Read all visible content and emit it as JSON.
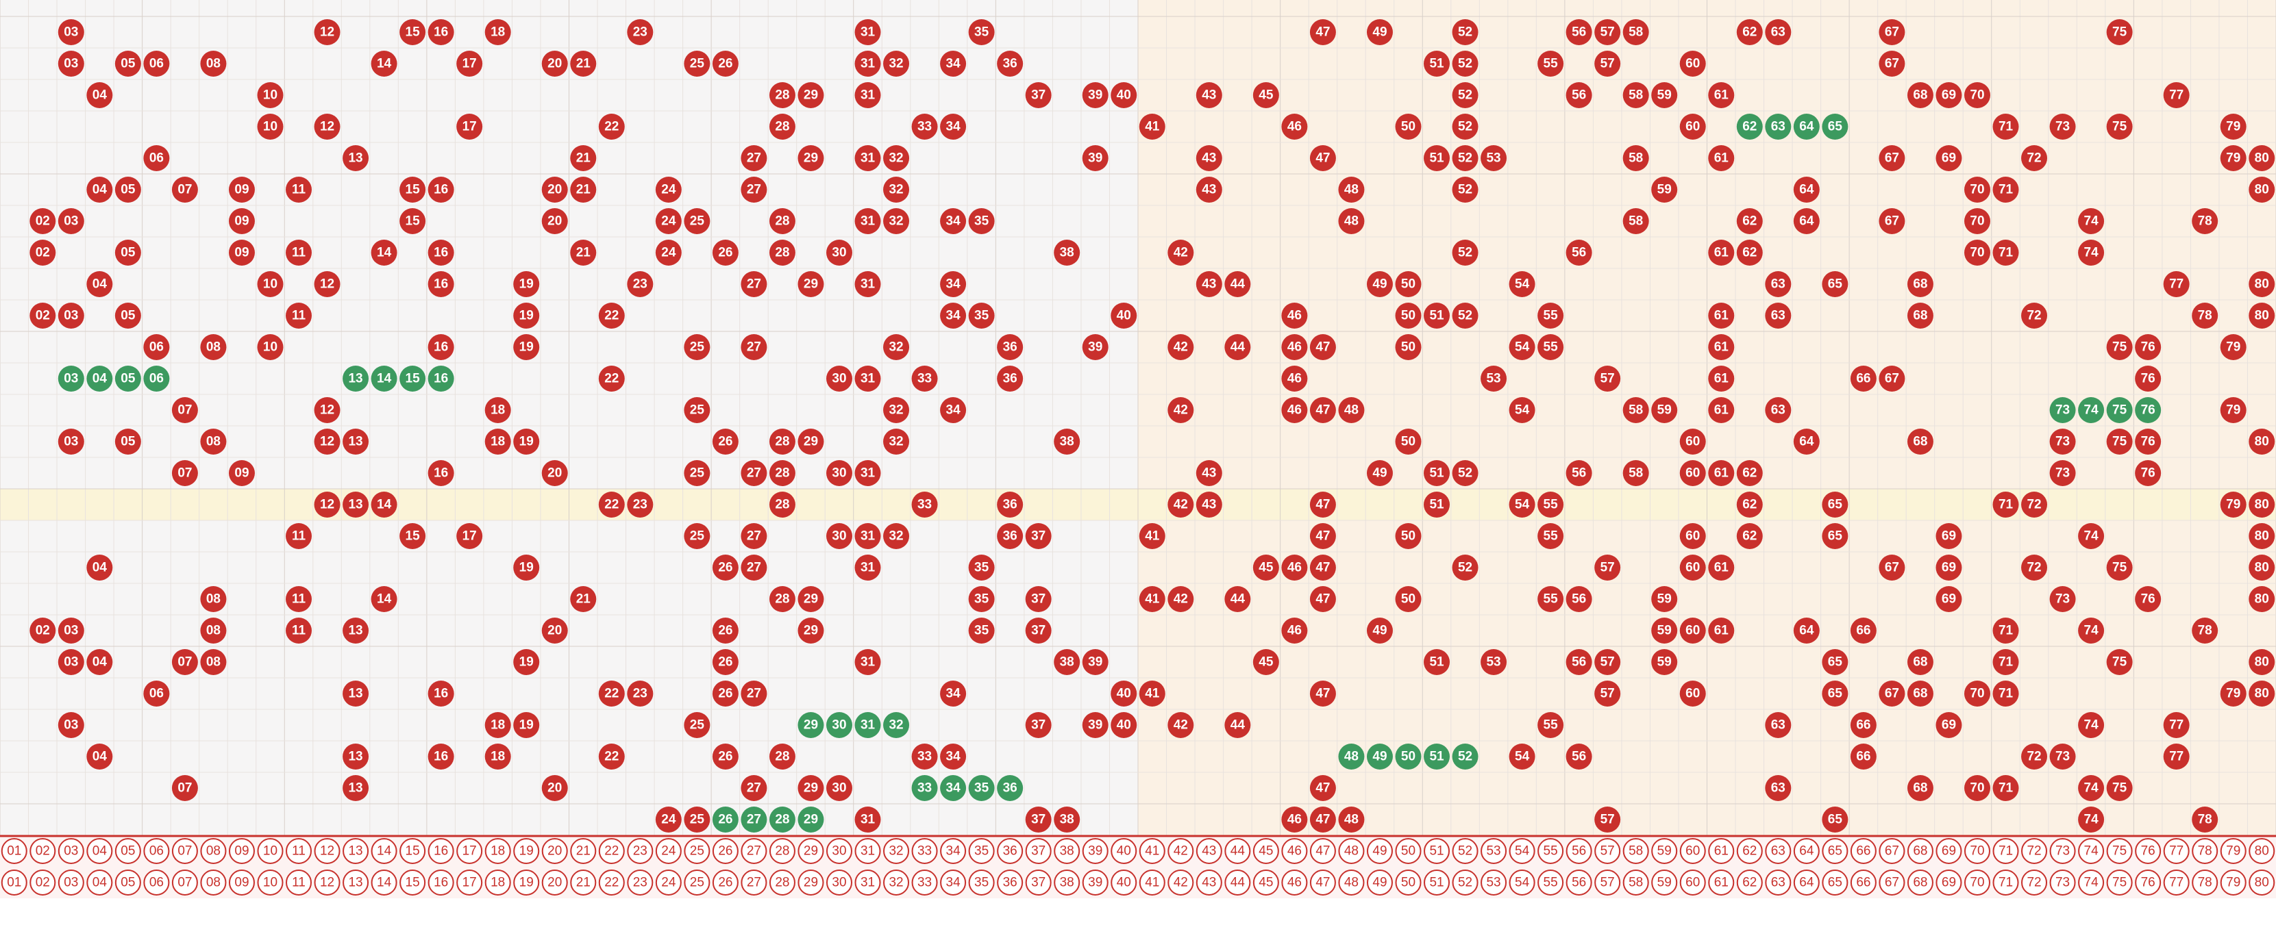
{
  "trend": {
    "columns": [
      "01",
      "02",
      "03",
      "04",
      "05",
      "06",
      "07",
      "08",
      "09",
      "10",
      "11",
      "12",
      "13",
      "14",
      "15",
      "16",
      "17",
      "18",
      "19",
      "20",
      "21",
      "22",
      "23",
      "24",
      "25",
      "26",
      "27",
      "28",
      "29",
      "30",
      "31",
      "32",
      "33",
      "34",
      "35",
      "36",
      "37",
      "38",
      "39",
      "40",
      "41",
      "42",
      "43",
      "44",
      "45",
      "46",
      "47",
      "48",
      "49",
      "50",
      "51",
      "52",
      "53",
      "54",
      "55",
      "56",
      "57",
      "58",
      "59",
      "60",
      "61",
      "62",
      "63",
      "64",
      "65",
      "66",
      "67",
      "68",
      "69",
      "70",
      "71",
      "72",
      "73",
      "74",
      "75",
      "76",
      "77",
      "78",
      "79",
      "80"
    ],
    "rows": [
      {
        "red": [
          "03",
          "12",
          "15",
          "16",
          "18",
          "23",
          "31",
          "35",
          "47",
          "49",
          "52",
          "56",
          "57",
          "58",
          "62",
          "63",
          "67",
          "75"
        ],
        "green": []
      },
      {
        "red": [
          "03",
          "05",
          "06",
          "08",
          "14",
          "17",
          "20",
          "21",
          "25",
          "26",
          "31",
          "32",
          "34",
          "36",
          "51",
          "52",
          "55",
          "57",
          "60",
          "67"
        ],
        "green": []
      },
      {
        "red": [
          "04",
          "10",
          "28",
          "29",
          "31",
          "37",
          "39",
          "40",
          "43",
          "45",
          "52",
          "56",
          "58",
          "59",
          "61",
          "68",
          "69",
          "70",
          "77"
        ],
        "green": []
      },
      {
        "red": [
          "10",
          "12",
          "17",
          "22",
          "28",
          "33",
          "34",
          "41",
          "46",
          "50",
          "52",
          "60",
          "71",
          "73",
          "75",
          "79"
        ],
        "green": [
          "62",
          "63",
          "64",
          "65"
        ]
      },
      {
        "red": [
          "06",
          "13",
          "21",
          "27",
          "29",
          "31",
          "32",
          "39",
          "43",
          "47",
          "51",
          "52",
          "53",
          "58",
          "61",
          "67",
          "69",
          "72",
          "79",
          "80"
        ],
        "green": []
      },
      {
        "red": [
          "04",
          "05",
          "07",
          "09",
          "11",
          "15",
          "16",
          "20",
          "21",
          "24",
          "27",
          "32",
          "43",
          "48",
          "52",
          "59",
          "64",
          "70",
          "71",
          "80"
        ],
        "green": []
      },
      {
        "red": [
          "02",
          "03",
          "09",
          "15",
          "20",
          "24",
          "25",
          "28",
          "31",
          "32",
          "34",
          "35",
          "48",
          "58",
          "62",
          "64",
          "67",
          "70",
          "74",
          "78"
        ],
        "green": []
      },
      {
        "red": [
          "02",
          "05",
          "09",
          "11",
          "14",
          "16",
          "21",
          "24",
          "26",
          "28",
          "30",
          "38",
          "42",
          "52",
          "56",
          "61",
          "62",
          "70",
          "71",
          "74"
        ],
        "green": []
      },
      {
        "red": [
          "04",
          "10",
          "12",
          "16",
          "19",
          "23",
          "27",
          "29",
          "31",
          "34",
          "43",
          "44",
          "49",
          "50",
          "54",
          "63",
          "65",
          "68",
          "77",
          "80"
        ],
        "green": []
      },
      {
        "red": [
          "02",
          "03",
          "05",
          "11",
          "19",
          "22",
          "34",
          "35",
          "40",
          "46",
          "50",
          "51",
          "52",
          "55",
          "61",
          "63",
          "68",
          "72",
          "78",
          "80"
        ],
        "green": []
      },
      {
        "red": [
          "06",
          "08",
          "10",
          "16",
          "19",
          "25",
          "27",
          "32",
          "36",
          "39",
          "42",
          "44",
          "46",
          "47",
          "50",
          "54",
          "55",
          "61",
          "75",
          "76",
          "79"
        ],
        "green": []
      },
      {
        "red": [
          "22",
          "30",
          "31",
          "33",
          "36",
          "46",
          "53",
          "57",
          "61",
          "66",
          "67",
          "76"
        ],
        "green": [
          "03",
          "04",
          "05",
          "06",
          "13",
          "14",
          "15",
          "16"
        ]
      },
      {
        "red": [
          "07",
          "12",
          "18",
          "25",
          "32",
          "34",
          "42",
          "46",
          "47",
          "48",
          "54",
          "58",
          "59",
          "61",
          "63",
          "79"
        ],
        "green": [
          "73",
          "74",
          "75",
          "76"
        ]
      },
      {
        "red": [
          "03",
          "05",
          "08",
          "12",
          "13",
          "18",
          "19",
          "26",
          "28",
          "29",
          "32",
          "38",
          "50",
          "60",
          "64",
          "68",
          "73",
          "75",
          "76",
          "80"
        ],
        "green": []
      },
      {
        "red": [
          "07",
          "09",
          "16",
          "20",
          "25",
          "27",
          "28",
          "30",
          "31",
          "43",
          "49",
          "51",
          "52",
          "56",
          "58",
          "60",
          "61",
          "62",
          "73",
          "76"
        ],
        "green": []
      },
      {
        "red": [
          "12",
          "13",
          "14",
          "22",
          "23",
          "28",
          "33",
          "36",
          "42",
          "43",
          "47",
          "51",
          "54",
          "55",
          "62",
          "65",
          "71",
          "72",
          "79",
          "80"
        ],
        "green": []
      },
      {
        "red": [
          "11",
          "15",
          "17",
          "25",
          "27",
          "30",
          "31",
          "32",
          "36",
          "37",
          "41",
          "47",
          "50",
          "55",
          "60",
          "62",
          "65",
          "69",
          "74",
          "80"
        ],
        "green": []
      },
      {
        "red": [
          "04",
          "19",
          "26",
          "27",
          "31",
          "35",
          "45",
          "46",
          "47",
          "52",
          "57",
          "60",
          "61",
          "67",
          "69",
          "72",
          "75",
          "80"
        ],
        "green": []
      },
      {
        "red": [
          "08",
          "11",
          "14",
          "21",
          "28",
          "29",
          "35",
          "37",
          "41",
          "42",
          "44",
          "47",
          "50",
          "55",
          "56",
          "59",
          "69",
          "73",
          "76",
          "80"
        ],
        "green": []
      },
      {
        "red": [
          "02",
          "03",
          "08",
          "11",
          "13",
          "20",
          "26",
          "29",
          "35",
          "37",
          "46",
          "49",
          "59",
          "60",
          "61",
          "64",
          "66",
          "71",
          "74",
          "78"
        ],
        "green": []
      },
      {
        "red": [
          "03",
          "04",
          "07",
          "08",
          "19",
          "26",
          "31",
          "38",
          "39",
          "45",
          "51",
          "53",
          "56",
          "57",
          "59",
          "65",
          "68",
          "71",
          "75",
          "80"
        ],
        "green": []
      },
      {
        "red": [
          "06",
          "13",
          "16",
          "22",
          "23",
          "26",
          "27",
          "34",
          "40",
          "41",
          "47",
          "57",
          "60",
          "65",
          "67",
          "68",
          "70",
          "71",
          "79",
          "80"
        ],
        "green": []
      },
      {
        "red": [
          "03",
          "18",
          "19",
          "25",
          "37",
          "39",
          "40",
          "42",
          "44",
          "55",
          "63",
          "66",
          "69",
          "74",
          "77"
        ],
        "green": [
          "29",
          "30",
          "31",
          "32"
        ]
      },
      {
        "red": [
          "04",
          "13",
          "16",
          "18",
          "22",
          "26",
          "28",
          "33",
          "34",
          "54",
          "56",
          "66",
          "72",
          "73",
          "77"
        ],
        "green": [
          "48",
          "49",
          "50",
          "51",
          "52"
        ]
      },
      {
        "red": [
          "07",
          "13",
          "20",
          "27",
          "29",
          "30",
          "47",
          "63",
          "68",
          "70",
          "71",
          "74",
          "75"
        ],
        "green": [
          "33",
          "34",
          "35",
          "36"
        ]
      },
      {
        "red": [
          "24",
          "25",
          "31",
          "37",
          "38",
          "46",
          "47",
          "48",
          "57",
          "65",
          "74",
          "78"
        ],
        "green": [
          "26",
          "27",
          "28",
          "29"
        ]
      }
    ]
  }
}
